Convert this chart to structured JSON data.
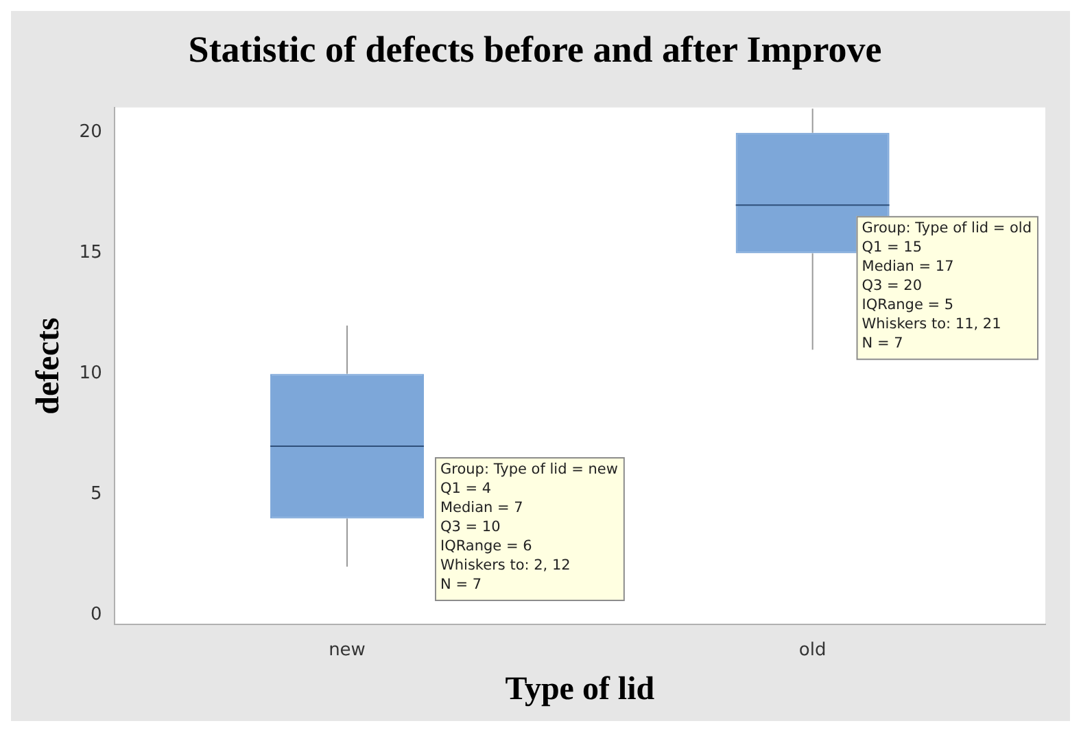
{
  "chart_data": {
    "type": "box",
    "title": "Statistic of defects before and after Improve",
    "xlabel": "Type of lid",
    "ylabel": "defects",
    "categories": [
      "new",
      "old"
    ],
    "color": "#7da7d9",
    "boxes": [
      {
        "low": 2,
        "q1": 4,
        "median": 7,
        "q3": 10,
        "high": 12
      },
      {
        "low": 11,
        "q1": 15,
        "median": 17,
        "q3": 20,
        "high": 21
      }
    ],
    "ylim": [
      -0.4,
      21.05
    ],
    "yticks": [
      0,
      5,
      10,
      15,
      20
    ],
    "annotations": [
      "Group: Type of lid = new\nQ1 = 4\nMedian = 7\nQ3 = 10\nIQRange = 6\nWhiskers to: 2, 12\nN = 7",
      "Group: Type of lid = old\nQ1 = 15\nMedian = 17\nQ3 = 20\nIQRange = 5\nWhiskers to: 11, 21\nN = 7"
    ]
  }
}
